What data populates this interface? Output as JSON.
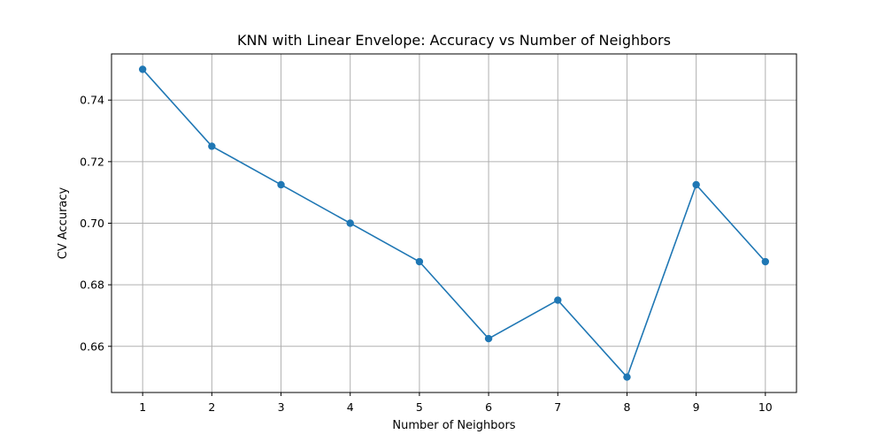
{
  "chart_data": {
    "type": "line",
    "title": "KNN with Linear Envelope: Accuracy vs Number of Neighbors",
    "xlabel": "Number of Neighbors",
    "ylabel": "CV Accuracy",
    "x": [
      1,
      2,
      3,
      4,
      5,
      6,
      7,
      8,
      9,
      10
    ],
    "series": [
      {
        "values": [
          0.75,
          0.725,
          0.7125,
          0.7,
          0.6875,
          0.6625,
          0.675,
          0.65,
          0.7125,
          0.6875
        ],
        "color": "#1f77b4",
        "marker": "circle"
      }
    ],
    "xticks": [
      "1",
      "2",
      "3",
      "4",
      "5",
      "6",
      "7",
      "8",
      "9",
      "10"
    ],
    "yticks": [
      "0.66",
      "0.68",
      "0.70",
      "0.72",
      "0.74"
    ],
    "xlim": [
      0.55,
      10.45
    ],
    "ylim": [
      0.645,
      0.755
    ],
    "grid": true
  }
}
